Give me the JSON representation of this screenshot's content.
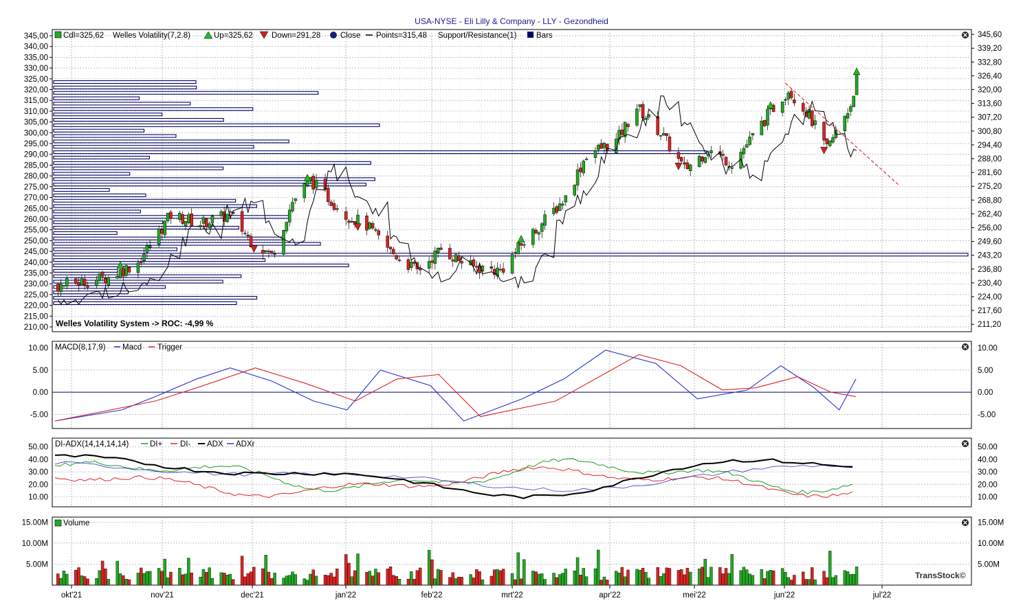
{
  "title": "USA-NYSE - Eli Lilly & Company - LLY - Gezondheid",
  "watermark": "TransStock©",
  "colors": {
    "up": "#22aa22",
    "down": "#dd2222",
    "macd": "#2233cc",
    "trigger": "#dd2222",
    "diplus": "#229922",
    "diminus": "#dd2222",
    "adx": "#000000",
    "adxr": "#3333cc",
    "bars": "#000066",
    "points": "#000000",
    "support": "#dd2222"
  },
  "x_axis": {
    "labels": [
      "okt'21",
      "nov'21",
      "dec'21",
      "jan'22",
      "feb'22",
      "mrt'22",
      "apr'22",
      "mei'22",
      "jun'22",
      "jul'22"
    ]
  },
  "price_panel": {
    "legend": {
      "cdl": "Cdl=325,62",
      "indicator": "Welles Volatility(7,2.8)",
      "up": "Up=325,62",
      "down": "Down=291,28",
      "close": "Close",
      "points": "Points=315,48",
      "support": "Support/Resistance(1)",
      "bars": "Bars"
    },
    "note": "Welles Volatility System -> ROC: -4,99 %",
    "left_ticks": [
      "345,00",
      "340,00",
      "335,00",
      "330,00",
      "325,00",
      "320,00",
      "315,00",
      "310,00",
      "305,00",
      "300,00",
      "295,00",
      "290,00",
      "285,00",
      "280,00",
      "275,00",
      "270,00",
      "265,00",
      "260,00",
      "255,00",
      "250,00",
      "245,00",
      "240,00",
      "235,00",
      "230,00",
      "225,00",
      "220,00",
      "215,00",
      "210,00"
    ],
    "right_ticks": [
      "345,60",
      "339,20",
      "332,80",
      "326,40",
      "320,00",
      "313,60",
      "307,20",
      "300,80",
      "294,40",
      "288,00",
      "281,60",
      "275,20",
      "268,80",
      "262,40",
      "256,00",
      "249,60",
      "243,20",
      "236,80",
      "230,40",
      "224,00",
      "217,60",
      "211,20"
    ]
  },
  "macd_panel": {
    "legend": {
      "name": "MACD(8,17,9)",
      "macd": "Macd",
      "trigger": "Trigger"
    },
    "ticks": [
      "10.00",
      "5.00",
      "0.00",
      "-5.00"
    ]
  },
  "adx_panel": {
    "legend": {
      "name": "DI-ADX(14,14,14,14)",
      "diplus": "DI+",
      "diminus": "DI-",
      "adx": "ADX",
      "adxr": "ADXr"
    },
    "ticks": [
      "50.00",
      "40.00",
      "30.00",
      "20.00",
      "10.00"
    ]
  },
  "volume_panel": {
    "legend": {
      "name": "Volume"
    },
    "ticks": [
      "15.00M",
      "10.00M",
      "5.00M"
    ]
  },
  "chart_data": [
    {
      "type": "candlestick",
      "title": "USA-NYSE - Eli Lilly & Company - LLY - Gezondheid",
      "x_range": [
        "2021-09-27",
        "2022-07-08"
      ],
      "ylim": [
        210,
        345
      ],
      "ohlc_approx": [
        {
          "date": "2021-09-28",
          "close": 229
        },
        {
          "date": "2021-10-15",
          "close": 233
        },
        {
          "date": "2021-10-25",
          "close": 240
        },
        {
          "date": "2021-11-05",
          "close": 262
        },
        {
          "date": "2021-11-15",
          "close": 258
        },
        {
          "date": "2021-11-25",
          "close": 262
        },
        {
          "date": "2021-12-02",
          "close": 250
        },
        {
          "date": "2021-12-09",
          "close": 243
        },
        {
          "date": "2021-12-16",
          "close": 268
        },
        {
          "date": "2021-12-22",
          "close": 278
        },
        {
          "date": "2022-01-03",
          "close": 262
        },
        {
          "date": "2022-01-10",
          "close": 257
        },
        {
          "date": "2022-01-18",
          "close": 245
        },
        {
          "date": "2022-01-27",
          "close": 236
        },
        {
          "date": "2022-02-04",
          "close": 246
        },
        {
          "date": "2022-02-14",
          "close": 238
        },
        {
          "date": "2022-02-24",
          "close": 236
        },
        {
          "date": "2022-03-03",
          "close": 248
        },
        {
          "date": "2022-03-10",
          "close": 258
        },
        {
          "date": "2022-03-18",
          "close": 270
        },
        {
          "date": "2022-03-25",
          "close": 290
        },
        {
          "date": "2022-04-04",
          "close": 296
        },
        {
          "date": "2022-04-11",
          "close": 312
        },
        {
          "date": "2022-04-19",
          "close": 300
        },
        {
          "date": "2022-04-27",
          "close": 283
        },
        {
          "date": "2022-05-05",
          "close": 292
        },
        {
          "date": "2022-05-13",
          "close": 286
        },
        {
          "date": "2022-05-20",
          "close": 298
        },
        {
          "date": "2022-05-26",
          "close": 310
        },
        {
          "date": "2022-06-01",
          "close": 320
        },
        {
          "date": "2022-06-08",
          "close": 308
        },
        {
          "date": "2022-06-14",
          "close": 292
        },
        {
          "date": "2022-06-17",
          "close": 300
        },
        {
          "date": "2022-06-22",
          "close": 313
        },
        {
          "date": "2022-06-24",
          "close": 325.62
        }
      ],
      "signals": [
        {
          "date": "2021-10-19",
          "type": "up"
        },
        {
          "date": "2021-12-03",
          "type": "down"
        },
        {
          "date": "2021-12-21",
          "type": "up"
        },
        {
          "date": "2022-01-07",
          "type": "down"
        },
        {
          "date": "2022-03-03",
          "type": "up"
        },
        {
          "date": "2022-04-25",
          "type": "down"
        },
        {
          "date": "2022-05-26",
          "type": "up"
        },
        {
          "date": "2022-06-13",
          "type": "down"
        },
        {
          "date": "2022-06-24",
          "type": "up"
        }
      ],
      "volume_by_price_bars": true,
      "support_resistance_line": {
        "from": {
          "date": "2022-05-31",
          "value": 323
        },
        "to": {
          "date": "2022-07-08",
          "value": 276
        }
      }
    },
    {
      "type": "line",
      "title": "MACD(8,17,9)",
      "ylim": [
        -7,
        10
      ],
      "series": [
        {
          "name": "Macd",
          "points": [
            [
              0,
              -6.5
            ],
            [
              0.08,
              -4
            ],
            [
              0.12,
              -1
            ],
            [
              0.17,
              3
            ],
            [
              0.21,
              5.5
            ],
            [
              0.26,
              2.5
            ],
            [
              0.31,
              -2
            ],
            [
              0.35,
              -4
            ],
            [
              0.39,
              5
            ],
            [
              0.45,
              1.5
            ],
            [
              0.49,
              -6.5
            ],
            [
              0.56,
              -1.5
            ],
            [
              0.61,
              3
            ],
            [
              0.66,
              9.5
            ],
            [
              0.72,
              6.5
            ],
            [
              0.77,
              -1.5
            ],
            [
              0.83,
              0.5
            ],
            [
              0.87,
              6
            ],
            [
              0.91,
              1
            ],
            [
              0.94,
              -4
            ],
            [
              0.96,
              3
            ]
          ]
        },
        {
          "name": "Trigger",
          "points": [
            [
              0,
              -6.5
            ],
            [
              0.12,
              -2
            ],
            [
              0.17,
              1
            ],
            [
              0.24,
              5.5
            ],
            [
              0.3,
              2
            ],
            [
              0.36,
              -2
            ],
            [
              0.41,
              3
            ],
            [
              0.46,
              4
            ],
            [
              0.51,
              -5.5
            ],
            [
              0.6,
              -2
            ],
            [
              0.7,
              8.5
            ],
            [
              0.75,
              6
            ],
            [
              0.8,
              0.5
            ],
            [
              0.84,
              1
            ],
            [
              0.89,
              3.5
            ],
            [
              0.93,
              0
            ],
            [
              0.96,
              -1
            ]
          ]
        }
      ]
    },
    {
      "type": "line",
      "title": "DI-ADX(14,14,14,14)",
      "ylim": [
        5,
        55
      ],
      "series": [
        {
          "name": "DI+",
          "values_hint": "16-45"
        },
        {
          "name": "DI-",
          "values_hint": "8-38"
        },
        {
          "name": "ADX",
          "values_hint": "14-48"
        },
        {
          "name": "ADXr",
          "values_hint": "18-40"
        }
      ]
    },
    {
      "type": "bar",
      "title": "Volume",
      "ylim": [
        0,
        16000000
      ],
      "unit": "M"
    }
  ]
}
